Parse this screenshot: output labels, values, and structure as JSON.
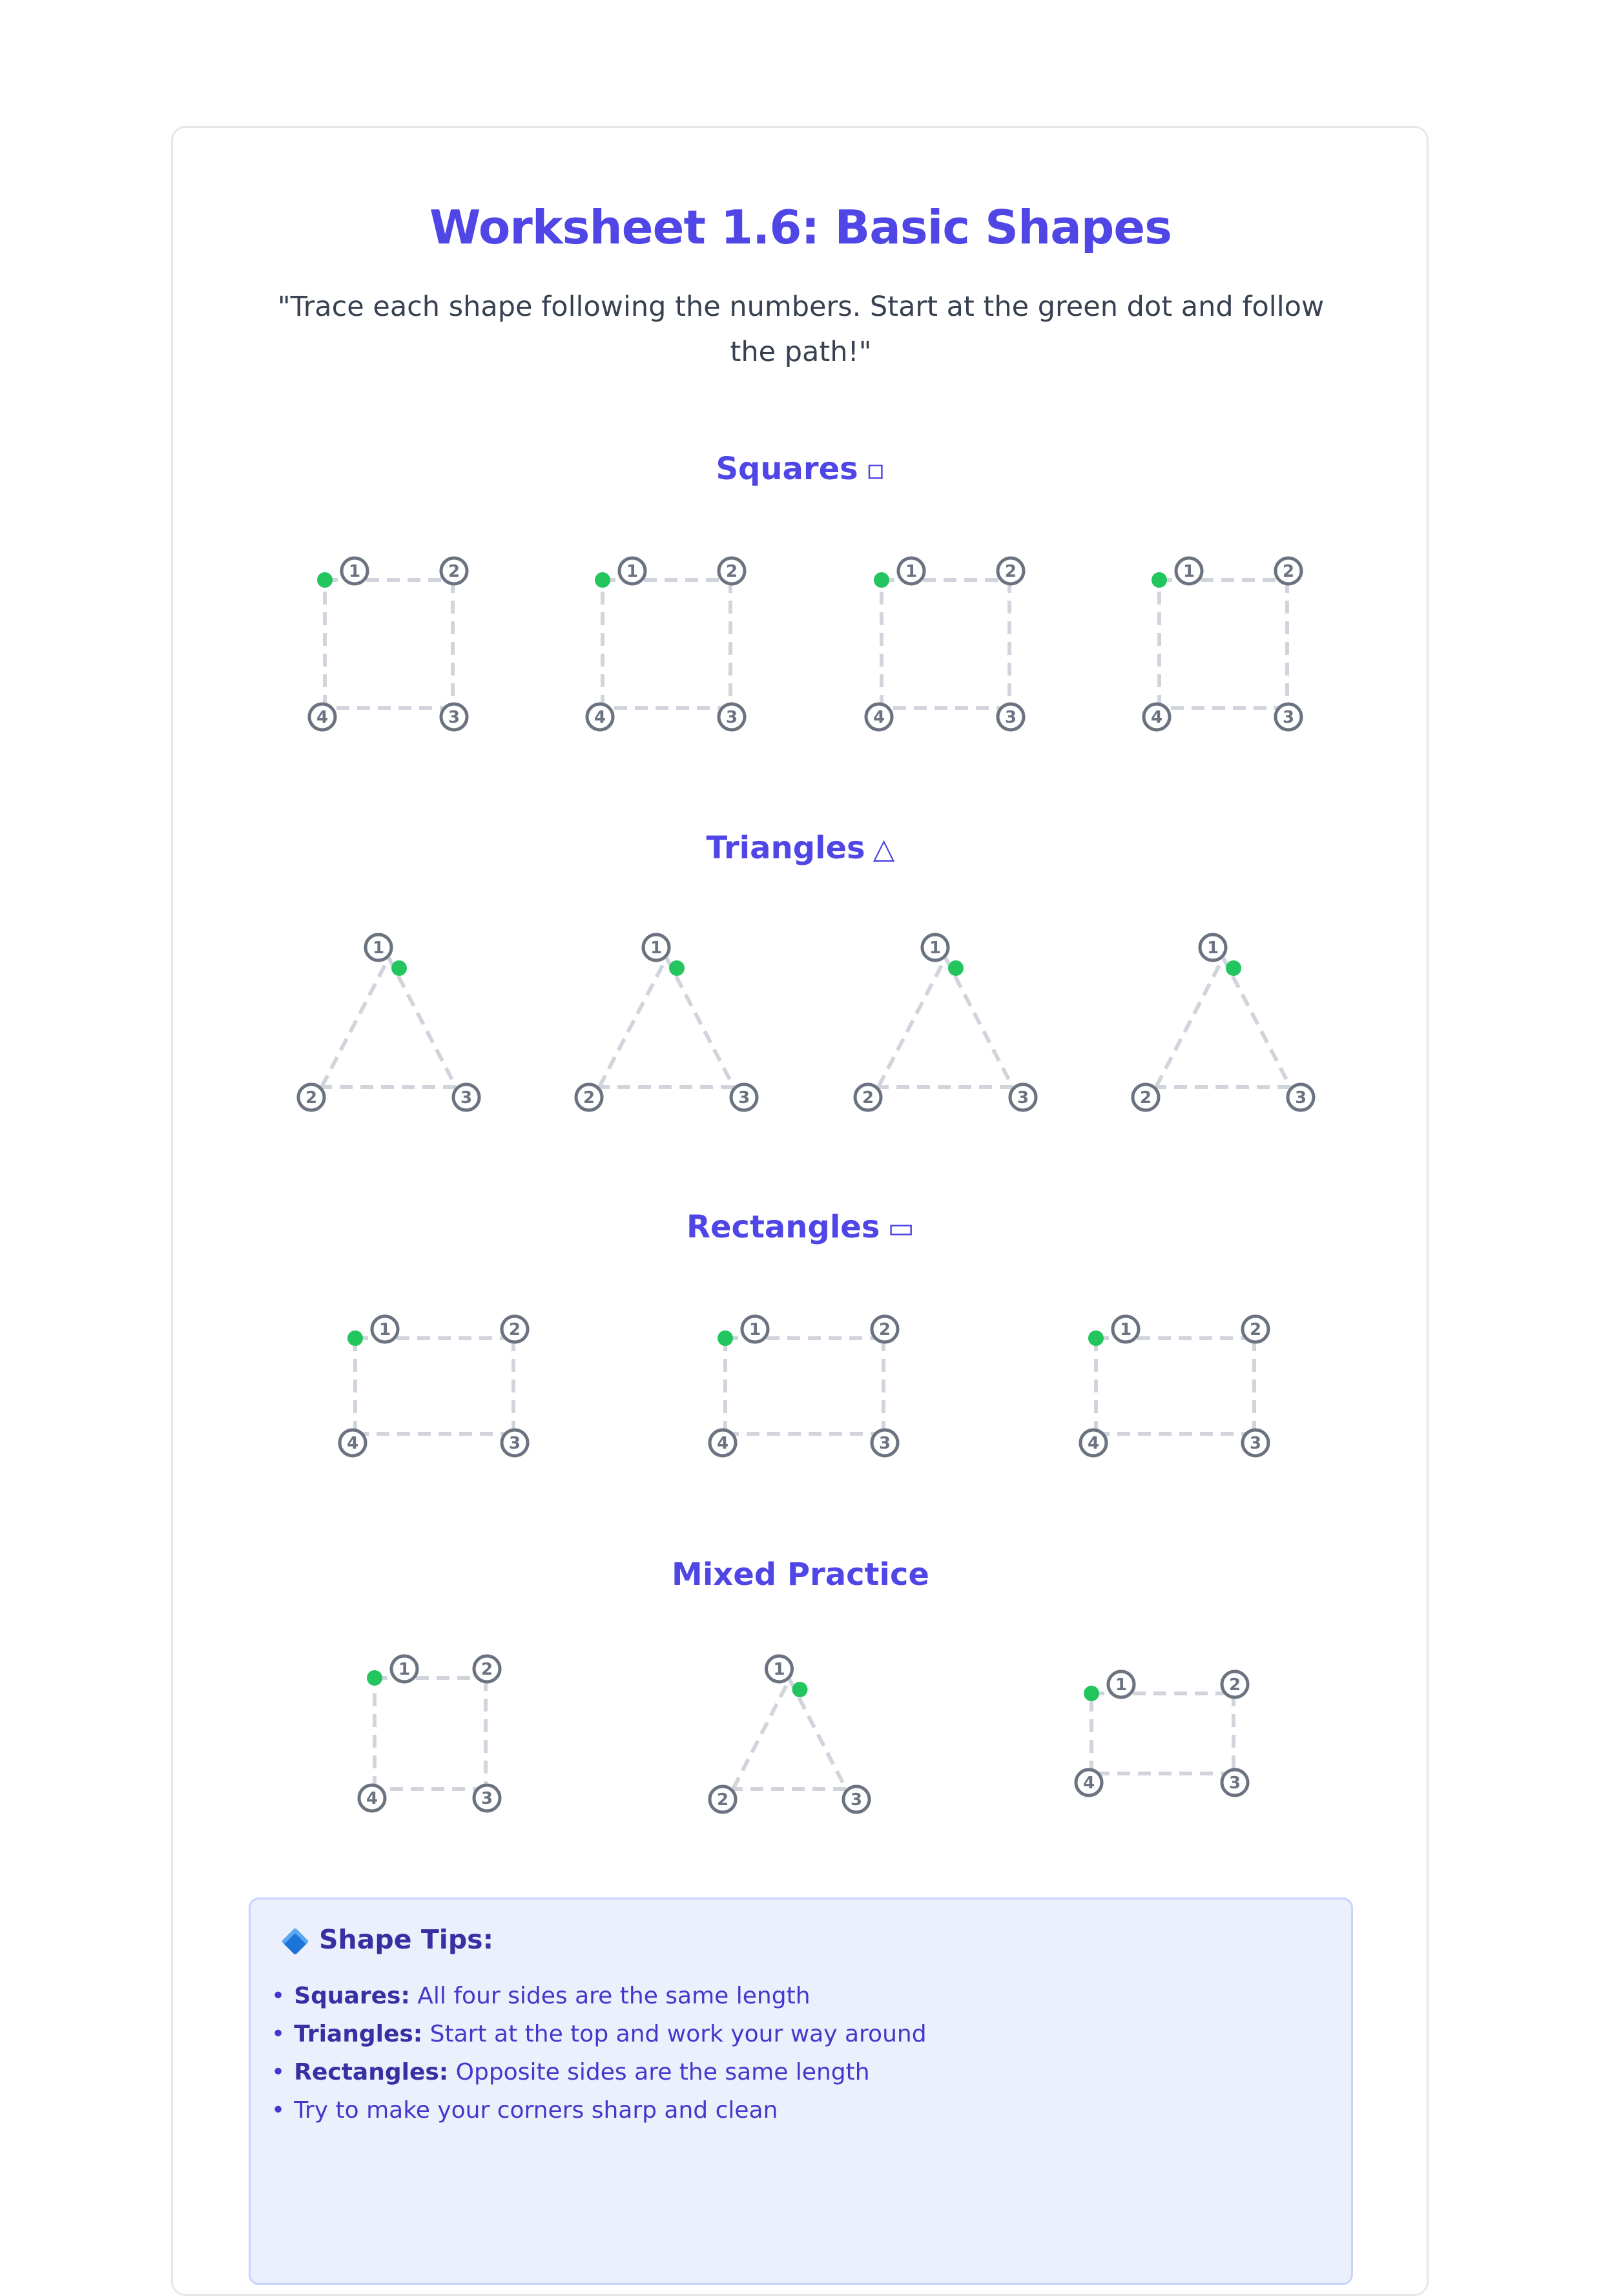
{
  "title": "Worksheet 1.6: Basic Shapes",
  "instructions": "\"Trace each shape following the numbers. Start at the green dot and follow the path!\"",
  "sections": [
    {
      "label": "Squares",
      "symbol": "▫"
    },
    {
      "label": "Triangles",
      "symbol": "△"
    },
    {
      "label": "Rectangles",
      "symbol": "▭"
    },
    {
      "label": "Mixed Practice",
      "symbol": ""
    }
  ],
  "point_numbers": [
    "1",
    "2",
    "3",
    "4"
  ],
  "colors": {
    "accent": "#4f46e5",
    "start_dot": "#22c55e",
    "dashed_line": "#d1d5db",
    "number_circle": "#6b7280",
    "tips_background": "#eceffc"
  },
  "tips": {
    "icon": "blue-diamond-icon",
    "title": "Shape Tips:",
    "items": [
      {
        "term": "Squares:",
        "text": " All four sides are the same length"
      },
      {
        "term": "Triangles:",
        "text": " Start at the top and work your way around"
      },
      {
        "term": "Rectangles:",
        "text": " Opposite sides are the same length"
      },
      {
        "term": "",
        "text": "Try to make your corners sharp and clean"
      }
    ]
  }
}
